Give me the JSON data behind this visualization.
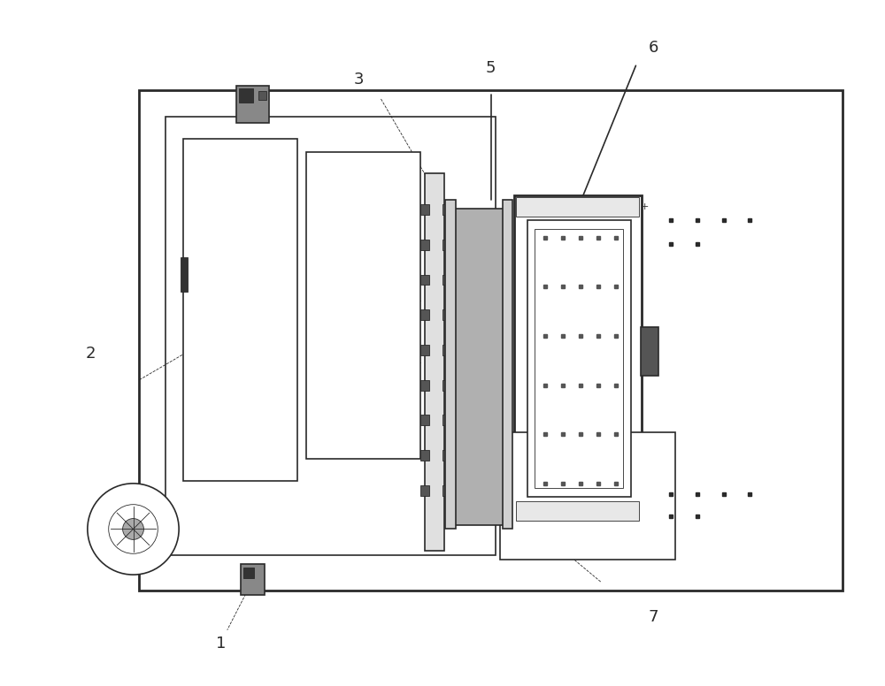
{
  "bg_color": "#ffffff",
  "line_color": "#2a2a2a",
  "lw_thick": 2.0,
  "lw_med": 1.2,
  "lw_thin": 0.6,
  "fig_width": 10.0,
  "fig_height": 7.76,
  "label_fontsize": 13
}
